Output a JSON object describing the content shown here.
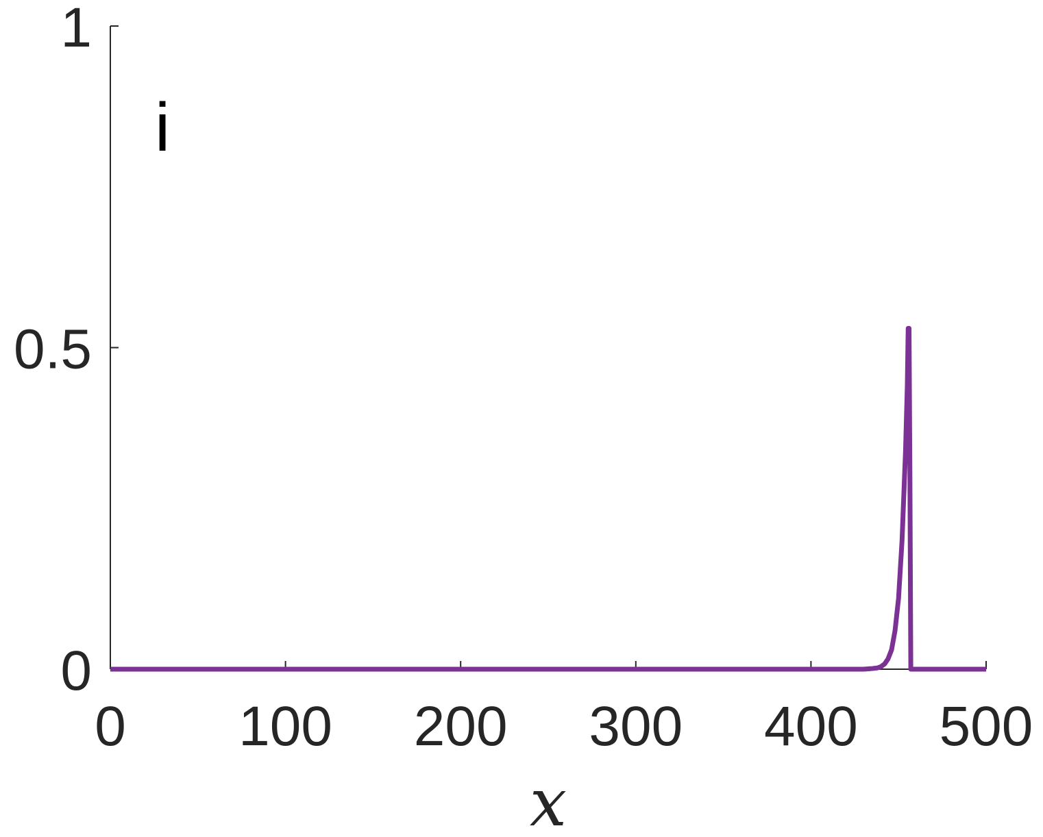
{
  "panel_label": "i",
  "chart_data": {
    "type": "line",
    "xlabel": "x",
    "ylabel": "",
    "xlim": [
      0,
      500
    ],
    "ylim": [
      0,
      1
    ],
    "xticks": [
      0,
      100,
      200,
      300,
      400,
      500
    ],
    "yticks": [
      0,
      0.5,
      1
    ],
    "xtick_labels": [
      "0",
      "100",
      "200",
      "300",
      "400",
      "500"
    ],
    "ytick_labels": [
      "0",
      "0.5",
      "1"
    ],
    "grid": false,
    "series": [
      {
        "color": "#7b3294",
        "x": [
          0,
          420,
          430,
          435,
          438,
          440,
          442,
          444,
          446,
          448,
          450,
          452,
          454,
          455,
          455.5,
          456,
          456.5,
          457,
          458,
          460,
          470,
          500
        ],
        "y": [
          0,
          0,
          0,
          0.001,
          0.002,
          0.004,
          0.008,
          0.016,
          0.03,
          0.06,
          0.11,
          0.2,
          0.34,
          0.44,
          0.53,
          0.53,
          0.3,
          0,
          0,
          0,
          0,
          0
        ]
      }
    ]
  }
}
